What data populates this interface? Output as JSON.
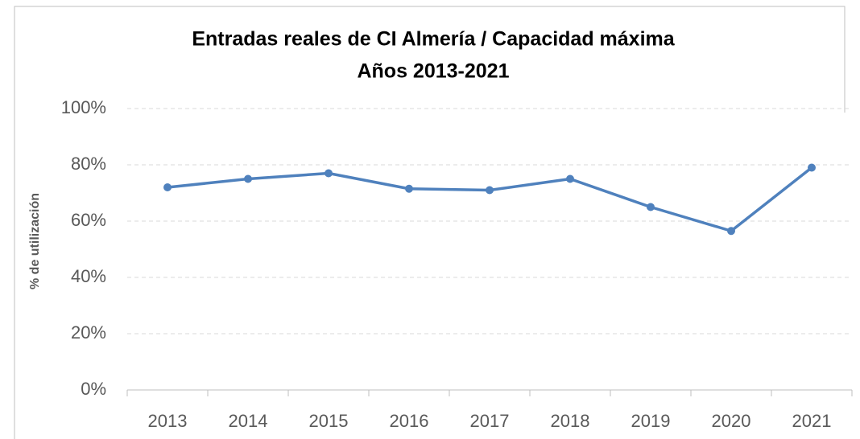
{
  "chart_data": {
    "type": "line",
    "title": "Entradas reales de CI Almería / Capacidad máxima",
    "subtitle": "Años 2013-2021",
    "y_label": "% de utilización",
    "categories": [
      "2013",
      "2014",
      "2015",
      "2016",
      "2017",
      "2018",
      "2019",
      "2020",
      "2021"
    ],
    "series": [
      {
        "color": "#4f81bd",
        "values": [
          72,
          75,
          77,
          71.5,
          71,
          75,
          65,
          56.5,
          79
        ]
      }
    ],
    "ylim": [
      0,
      100
    ],
    "yticks": [
      {
        "value": 0,
        "label": "0%"
      },
      {
        "value": 20,
        "label": "20%"
      },
      {
        "value": 40,
        "label": "40%"
      },
      {
        "value": 60,
        "label": "60%"
      },
      {
        "value": 80,
        "label": "80%"
      },
      {
        "value": 100,
        "label": "100%"
      }
    ],
    "grid": true
  }
}
